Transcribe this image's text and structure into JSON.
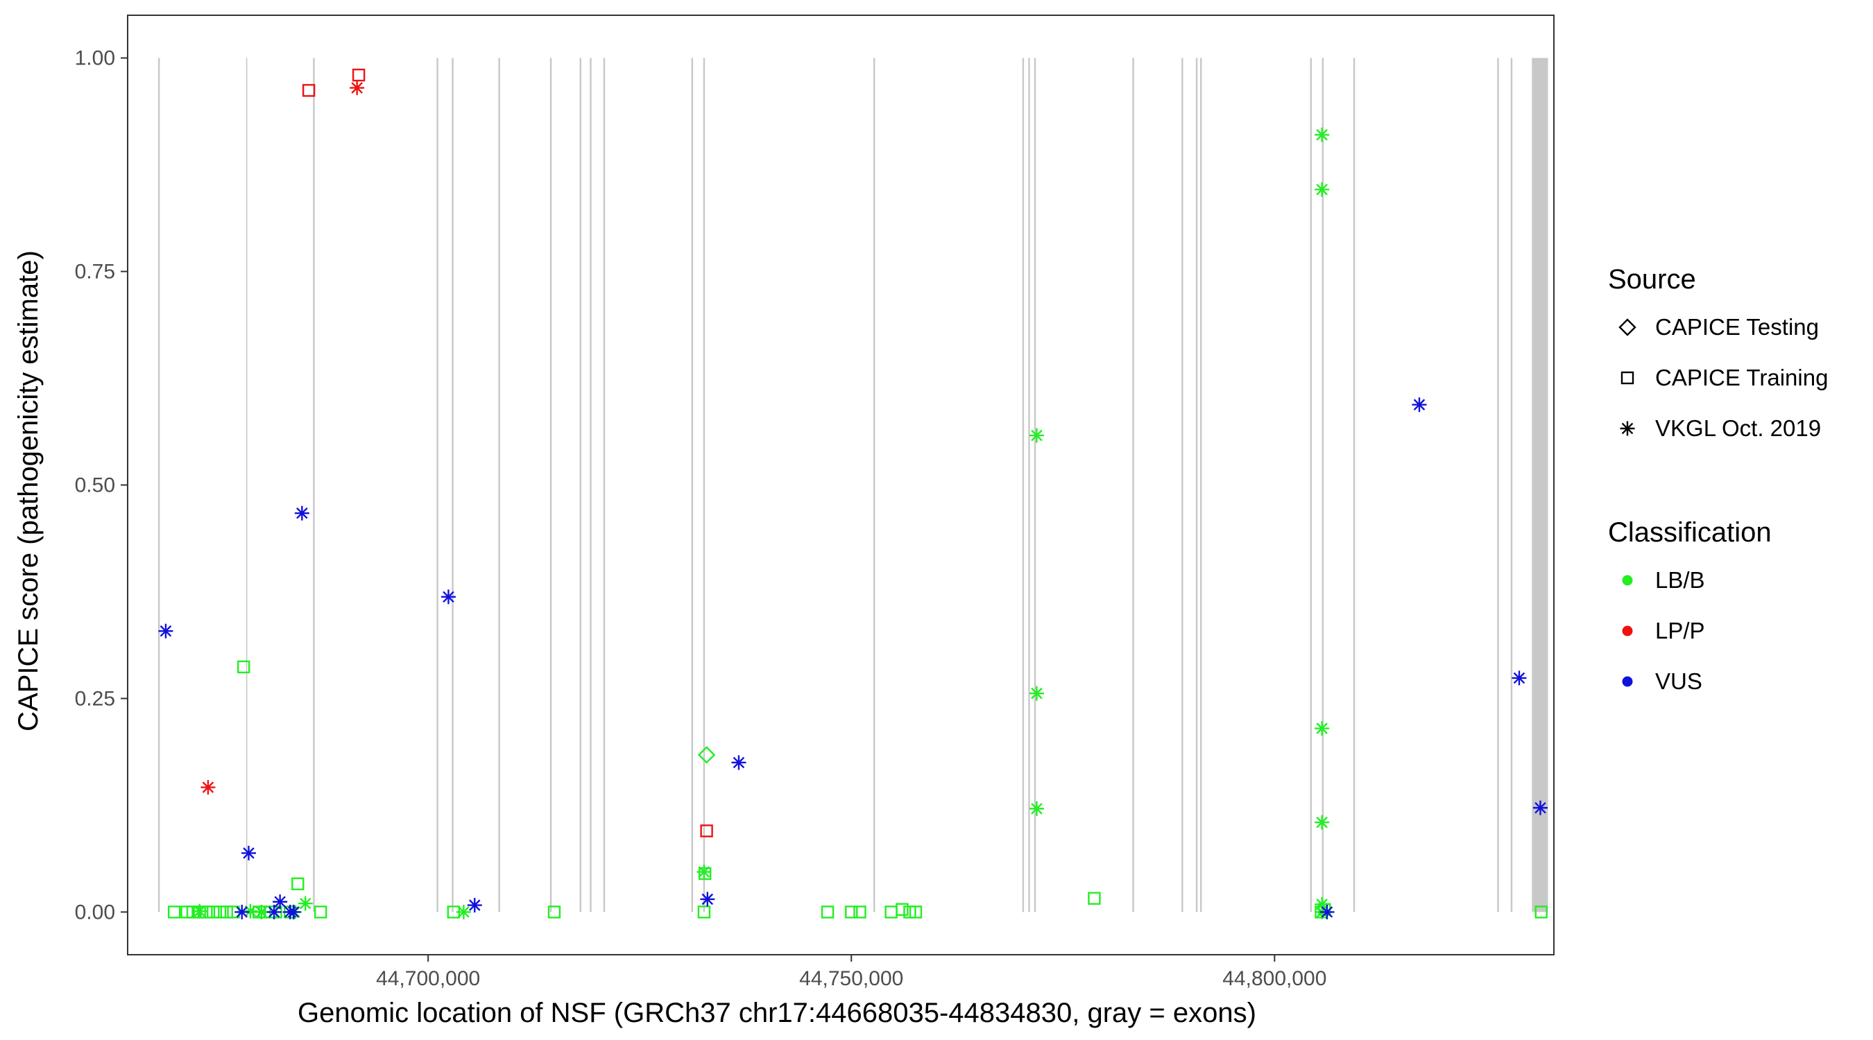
{
  "chart_data": {
    "type": "scatter",
    "xlabel": "Genomic location of NSF (GRCh37 chr17:44668035-44834830, gray = exons)",
    "ylabel": "CAPICE score (pathogenicity estimate)",
    "xlim": [
      44664500,
      44833000
    ],
    "ylim": [
      -0.05,
      1.05
    ],
    "x_ticks": [
      44700000,
      44750000,
      44800000
    ],
    "x_tick_labels": [
      "44,700,000",
      "44,750,000",
      "44,800,000"
    ],
    "y_ticks": [
      0,
      0.25,
      0.5,
      0.75,
      1
    ],
    "y_tick_labels": [
      "0.00",
      "0.25",
      "0.50",
      "0.75",
      "1.00"
    ],
    "grid": false,
    "legend_placement": "right",
    "exons": [
      [
        44668100,
        44668300
      ],
      [
        44678500,
        44678600
      ],
      [
        44686400,
        44686600
      ],
      [
        44701000,
        44701200
      ],
      [
        44702800,
        44703000
      ],
      [
        44708300,
        44708500
      ],
      [
        44714400,
        44714600
      ],
      [
        44717900,
        44718100
      ],
      [
        44719100,
        44719300
      ],
      [
        44720700,
        44720900
      ],
      [
        44731100,
        44731300
      ],
      [
        44732500,
        44732700
      ],
      [
        44752600,
        44752800
      ],
      [
        44770200,
        44770400
      ],
      [
        44770900,
        44771100
      ],
      [
        44771600,
        44771800
      ],
      [
        44783200,
        44783400
      ],
      [
        44789000,
        44789200
      ],
      [
        44790700,
        44790900
      ],
      [
        44791200,
        44791400
      ],
      [
        44804200,
        44804400
      ],
      [
        44805600,
        44805800
      ],
      [
        44809300,
        44809500
      ],
      [
        44826300,
        44826500
      ],
      [
        44827900,
        44828100
      ],
      [
        44830400,
        44832300
      ]
    ],
    "legend": {
      "source": {
        "title": "Source",
        "entries": [
          {
            "shape": "diamond",
            "label": "CAPICE Testing"
          },
          {
            "shape": "square",
            "label": "CAPICE Training"
          },
          {
            "shape": "asterisk",
            "label": "VKGL Oct. 2019"
          }
        ]
      },
      "classification": {
        "title": "Classification",
        "entries": [
          {
            "color": "#22ee22",
            "label": "LB/B"
          },
          {
            "color": "#ee1111",
            "label": "LP/P"
          },
          {
            "color": "#1111dd",
            "label": "VUS"
          }
        ]
      }
    },
    "series": [
      {
        "source": "CAPICE Testing",
        "classification": "LB/B",
        "shape": "diamond",
        "color": "#22ee22",
        "points": [
          [
            44732900,
            0.184
          ]
        ]
      },
      {
        "source": "CAPICE Training",
        "classification": "LB/B",
        "shape": "square",
        "color": "#22ee22",
        "points": [
          [
            44670000,
            0.0
          ],
          [
            44671500,
            0.0
          ],
          [
            44672200,
            0.0
          ],
          [
            44673000,
            0.0
          ],
          [
            44673800,
            0.0
          ],
          [
            44674600,
            0.0
          ],
          [
            44675400,
            0.0
          ],
          [
            44676200,
            0.0
          ],
          [
            44677000,
            0.0
          ],
          [
            44678200,
            0.287
          ],
          [
            44680000,
            0.0
          ],
          [
            44680700,
            0.0
          ],
          [
            44681400,
            0.0
          ],
          [
            44682000,
            0.0
          ],
          [
            44683700,
            0.0
          ],
          [
            44684600,
            0.033
          ],
          [
            44687300,
            0.0
          ],
          [
            44703000,
            0.0
          ],
          [
            44714900,
            0.0
          ],
          [
            44732600,
            0.0
          ],
          [
            44732700,
            0.045
          ],
          [
            44747200,
            0.0
          ],
          [
            44750000,
            0.0
          ],
          [
            44751000,
            0.0
          ],
          [
            44754700,
            0.0
          ],
          [
            44756000,
            0.003
          ],
          [
            44756900,
            0.0
          ],
          [
            44757600,
            0.0
          ],
          [
            44778700,
            0.016
          ],
          [
            44805500,
            0.0
          ],
          [
            44805900,
            0.003
          ],
          [
            44831500,
            0.0
          ]
        ]
      },
      {
        "source": "CAPICE Training",
        "classification": "LP/P",
        "shape": "square",
        "color": "#ee1111",
        "points": [
          [
            44685900,
            0.962
          ],
          [
            44691800,
            0.98
          ],
          [
            44732900,
            0.095
          ]
        ]
      },
      {
        "source": "VKGL Oct. 2019",
        "classification": "LB/B",
        "shape": "asterisk",
        "color": "#22ee22",
        "points": [
          [
            44673000,
            0.001
          ],
          [
            44679000,
            0.001
          ],
          [
            44680300,
            0.0
          ],
          [
            44684200,
            0.0
          ],
          [
            44685500,
            0.01
          ],
          [
            44704200,
            0.0
          ],
          [
            44732600,
            0.047
          ],
          [
            44771900,
            0.558
          ],
          [
            44771900,
            0.256
          ],
          [
            44771900,
            0.121
          ],
          [
            44805600,
            0.91
          ],
          [
            44805600,
            0.846
          ],
          [
            44805600,
            0.215
          ],
          [
            44805600,
            0.105
          ],
          [
            44805600,
            0.009
          ],
          [
            44805600,
            0.0
          ]
        ]
      },
      {
        "source": "VKGL Oct. 2019",
        "classification": "LP/P",
        "shape": "asterisk",
        "color": "#ee1111",
        "points": [
          [
            44674000,
            0.146
          ],
          [
            44691600,
            0.965
          ]
        ]
      },
      {
        "source": "VKGL Oct. 2019",
        "classification": "VUS",
        "shape": "asterisk",
        "color": "#1111dd",
        "points": [
          [
            44669000,
            0.329
          ],
          [
            44678000,
            0.0
          ],
          [
            44678800,
            0.069
          ],
          [
            44681800,
            0.0
          ],
          [
            44682500,
            0.012
          ],
          [
            44683700,
            0.0
          ],
          [
            44684100,
            0.0
          ],
          [
            44685100,
            0.467
          ],
          [
            44702400,
            0.369
          ],
          [
            44705500,
            0.008
          ],
          [
            44733000,
            0.015
          ],
          [
            44736700,
            0.175
          ],
          [
            44806200,
            0.0
          ],
          [
            44817100,
            0.594
          ],
          [
            44828900,
            0.274
          ],
          [
            44831400,
            0.122
          ]
        ]
      }
    ]
  }
}
